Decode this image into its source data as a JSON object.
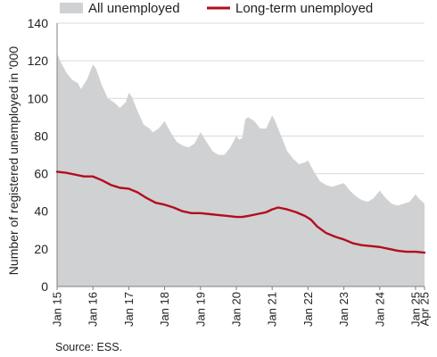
{
  "chart_data": {
    "type": "area",
    "ylabel": "Number of registered unemployed in '000",
    "ylim": [
      0,
      140
    ],
    "yticks": [
      0,
      20,
      40,
      60,
      80,
      100,
      120,
      140
    ],
    "xlim": [
      "2015-01",
      "2025-04"
    ],
    "xticks": [
      {
        "date": "2015-01",
        "label": "Jan 15"
      },
      {
        "date": "2016-01",
        "label": "Jan 16"
      },
      {
        "date": "2017-01",
        "label": "Jan 17"
      },
      {
        "date": "2018-01",
        "label": "Jan 18"
      },
      {
        "date": "2019-01",
        "label": "Jan 19"
      },
      {
        "date": "2020-01",
        "label": "Jan 20"
      },
      {
        "date": "2021-01",
        "label": "Jan 21"
      },
      {
        "date": "2022-01",
        "label": "Jan 22"
      },
      {
        "date": "2023-01",
        "label": "Jan 23"
      },
      {
        "date": "2024-01",
        "label": "Jan 24"
      },
      {
        "date": "2025-01",
        "label": "Jan 25"
      },
      {
        "date": "2025-04",
        "label": "Apr 25"
      }
    ],
    "grid": "horizontal",
    "legend_position": "top",
    "series": [
      {
        "name": "All unemployed",
        "style": "area",
        "color": "#d0d1d3",
        "points": [
          [
            "2015-01",
            124
          ],
          [
            "2015-02",
            120
          ],
          [
            "2015-04",
            114
          ],
          [
            "2015-06",
            110
          ],
          [
            "2015-08",
            108
          ],
          [
            "2015-09",
            105
          ],
          [
            "2015-11",
            110
          ],
          [
            "2016-01",
            118
          ],
          [
            "2016-02",
            116
          ],
          [
            "2016-04",
            107
          ],
          [
            "2016-06",
            100
          ],
          [
            "2016-08",
            98
          ],
          [
            "2016-10",
            95
          ],
          [
            "2016-12",
            98
          ],
          [
            "2017-01",
            103
          ],
          [
            "2017-02",
            101
          ],
          [
            "2017-04",
            93
          ],
          [
            "2017-06",
            86
          ],
          [
            "2017-08",
            84
          ],
          [
            "2017-09",
            82
          ],
          [
            "2017-11",
            84
          ],
          [
            "2018-01",
            88
          ],
          [
            "2018-03",
            82
          ],
          [
            "2018-05",
            77
          ],
          [
            "2018-07",
            75
          ],
          [
            "2018-09",
            74
          ],
          [
            "2018-11",
            76
          ],
          [
            "2019-01",
            82
          ],
          [
            "2019-03",
            77
          ],
          [
            "2019-05",
            72
          ],
          [
            "2019-07",
            70
          ],
          [
            "2019-09",
            70
          ],
          [
            "2019-11",
            74
          ],
          [
            "2020-01",
            80
          ],
          [
            "2020-02",
            78
          ],
          [
            "2020-03",
            79
          ],
          [
            "2020-04",
            89
          ],
          [
            "2020-05",
            90
          ],
          [
            "2020-07",
            88
          ],
          [
            "2020-09",
            84
          ],
          [
            "2020-11",
            84
          ],
          [
            "2021-01",
            91
          ],
          [
            "2021-02",
            88
          ],
          [
            "2021-04",
            80
          ],
          [
            "2021-06",
            72
          ],
          [
            "2021-08",
            68
          ],
          [
            "2021-10",
            65
          ],
          [
            "2021-12",
            66
          ],
          [
            "2022-01",
            67
          ],
          [
            "2022-03",
            61
          ],
          [
            "2022-05",
            56
          ],
          [
            "2022-07",
            54
          ],
          [
            "2022-09",
            53
          ],
          [
            "2022-11",
            54
          ],
          [
            "2023-01",
            55
          ],
          [
            "2023-03",
            51
          ],
          [
            "2023-05",
            48
          ],
          [
            "2023-07",
            46
          ],
          [
            "2023-09",
            45
          ],
          [
            "2023-11",
            47
          ],
          [
            "2024-01",
            51
          ],
          [
            "2024-03",
            47
          ],
          [
            "2024-05",
            44
          ],
          [
            "2024-07",
            43
          ],
          [
            "2024-09",
            44
          ],
          [
            "2024-11",
            45
          ],
          [
            "2025-01",
            49
          ],
          [
            "2025-02",
            47
          ],
          [
            "2025-04",
            44
          ]
        ]
      },
      {
        "name": "Long-term unemployed",
        "style": "line",
        "color": "#b30d1e",
        "points": [
          [
            "2015-01",
            61
          ],
          [
            "2015-04",
            60.5
          ],
          [
            "2015-07",
            59.5
          ],
          [
            "2015-10",
            58.5
          ],
          [
            "2016-01",
            58.5
          ],
          [
            "2016-04",
            56.5
          ],
          [
            "2016-07",
            54
          ],
          [
            "2016-10",
            52.5
          ],
          [
            "2017-01",
            52
          ],
          [
            "2017-04",
            50
          ],
          [
            "2017-07",
            47
          ],
          [
            "2017-10",
            44.5
          ],
          [
            "2018-01",
            43.5
          ],
          [
            "2018-04",
            42
          ],
          [
            "2018-07",
            40
          ],
          [
            "2018-10",
            39
          ],
          [
            "2019-01",
            39
          ],
          [
            "2019-04",
            38.5
          ],
          [
            "2019-07",
            38
          ],
          [
            "2019-10",
            37.5
          ],
          [
            "2020-01",
            37
          ],
          [
            "2020-03",
            37
          ],
          [
            "2020-05",
            37.5
          ],
          [
            "2020-08",
            38.5
          ],
          [
            "2020-11",
            39.5
          ],
          [
            "2021-01",
            41
          ],
          [
            "2021-03",
            42
          ],
          [
            "2021-06",
            41
          ],
          [
            "2021-09",
            39.5
          ],
          [
            "2021-12",
            37.5
          ],
          [
            "2022-02",
            35.5
          ],
          [
            "2022-04",
            32
          ],
          [
            "2022-07",
            28.5
          ],
          [
            "2022-10",
            26.5
          ],
          [
            "2023-01",
            25
          ],
          [
            "2023-04",
            23
          ],
          [
            "2023-07",
            22
          ],
          [
            "2023-10",
            21.5
          ],
          [
            "2024-01",
            21
          ],
          [
            "2024-04",
            20
          ],
          [
            "2024-07",
            19
          ],
          [
            "2024-10",
            18.5
          ],
          [
            "2025-01",
            18.5
          ],
          [
            "2025-04",
            18
          ]
        ]
      }
    ]
  },
  "source": "Source: ESS."
}
